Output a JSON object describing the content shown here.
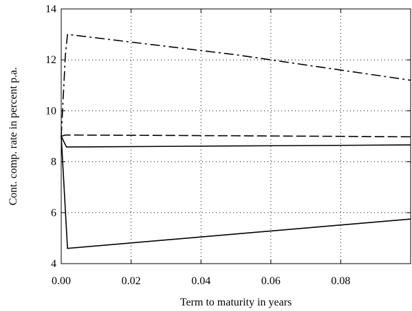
{
  "chart_data": {
    "type": "line",
    "xlabel": "Term to maturity in years",
    "ylabel": "Cont. comp. rate in percent p.a.",
    "xlim": [
      0,
      0.1
    ],
    "ylim": [
      4,
      14
    ],
    "xticks": [
      0.0,
      0.02,
      0.04,
      0.06,
      0.08
    ],
    "xtick_labels": [
      "0.00",
      "0.02",
      "0.04",
      "0.06",
      "0.08"
    ],
    "yticks": [
      4,
      6,
      8,
      10,
      12,
      14
    ],
    "ytick_labels": [
      "4",
      "6",
      "8",
      "10",
      "12",
      "14"
    ],
    "grid": true,
    "series": [
      {
        "style": "dashdot",
        "x": [
          0.0,
          0.0006,
          0.0012,
          0.0018,
          0.05,
          0.1
        ],
        "y": [
          9.0,
          10.6,
          12.2,
          13.0,
          12.2,
          11.2
        ]
      },
      {
        "style": "dashed",
        "x": [
          0.0,
          0.0012,
          0.05,
          0.1
        ],
        "y": [
          9.0,
          9.05,
          9.02,
          8.98
        ]
      },
      {
        "style": "solid",
        "x": [
          0.0,
          0.0015,
          0.05,
          0.1
        ],
        "y": [
          9.0,
          8.58,
          8.62,
          8.66
        ]
      },
      {
        "style": "solid",
        "x": [
          0.0,
          0.0018,
          0.1
        ],
        "y": [
          9.0,
          4.6,
          5.75
        ]
      }
    ]
  }
}
